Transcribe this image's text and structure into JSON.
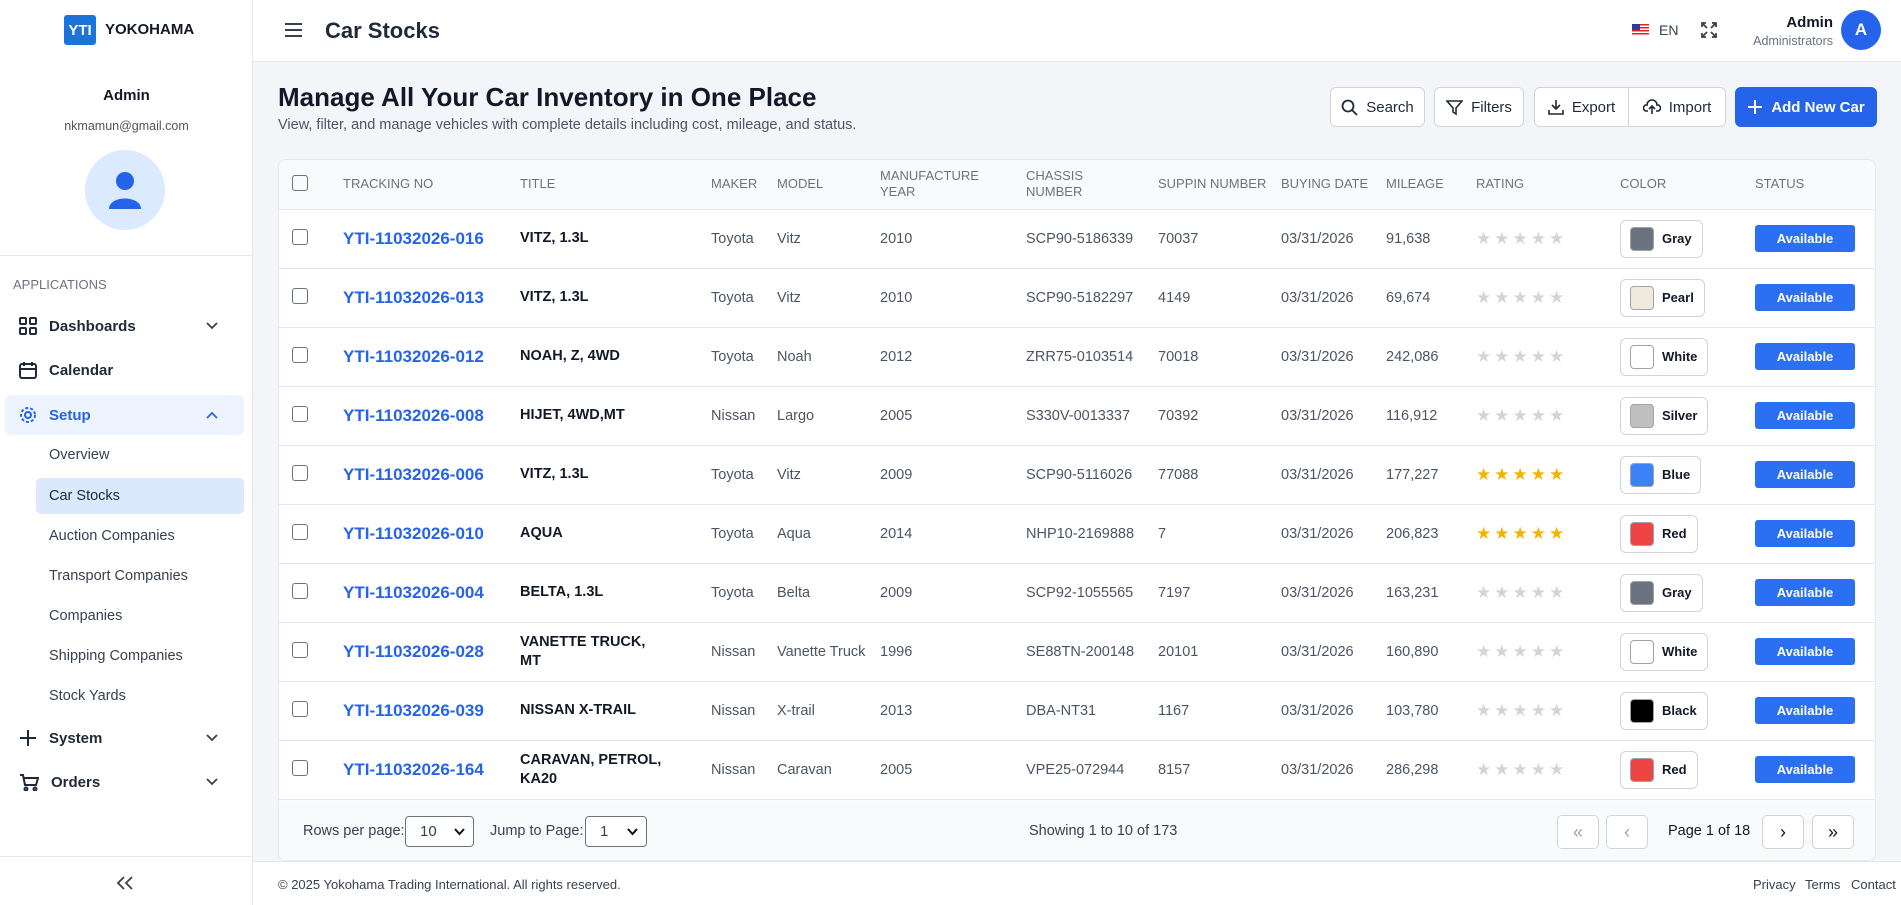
{
  "sidebar": {
    "logo": "YTI",
    "brand": "YOKOHAMA",
    "user_name": "Admin",
    "user_email": "nkmamun@gmail.com",
    "section": "APPLICATIONS",
    "menu": {
      "dashboards": "Dashboards",
      "calendar": "Calendar",
      "setup": "Setup",
      "system": "System",
      "orders": "Orders"
    },
    "setup_items": [
      "Overview",
      "Car Stocks",
      "Auction Companies",
      "Transport Companies",
      "Companies",
      "Shipping Companies",
      "Stock Yards"
    ]
  },
  "topbar": {
    "title": "Car Stocks",
    "language": "EN",
    "user_name": "Admin",
    "user_role": "Administrators",
    "avatar": "A"
  },
  "header": {
    "title": "Manage All Your Car Inventory in One Place",
    "subtitle": "View, filter, and manage vehicles with complete details including cost, mileage, and status."
  },
  "toolbar": {
    "search": "Search",
    "filters": "Filters",
    "export": "Export",
    "import": "Import",
    "add": "Add New Car"
  },
  "table": {
    "columns": [
      "TRACKING NO",
      "TITLE",
      "MAKER",
      "MODEL",
      "MANUFACTURE YEAR",
      "CHASSIS NUMBER",
      "SUPPIN NUMBER",
      "BUYING DATE",
      "MILEAGE",
      "RATING",
      "COLOR",
      "STATUS"
    ],
    "rows": [
      [
        "YTI-11032026-016",
        "VITZ, 1.3L",
        "Toyota",
        "Vitz",
        2010,
        "SCP90-5186339",
        70037,
        "03/31/2026",
        "91,638",
        0,
        "Gray",
        "#6b7280",
        "Available"
      ],
      [
        "YTI-11032026-013",
        "VITZ, 1.3L",
        "Toyota",
        "Vitz",
        2010,
        "SCP90-5182297",
        4149,
        "03/31/2026",
        "69,674",
        0,
        "Pearl",
        "#f0eadc",
        "Available"
      ],
      [
        "YTI-11032026-012",
        "NOAH, Z, 4WD",
        "Toyota",
        "Noah",
        2012,
        "ZRR75-0103514",
        70018,
        "03/31/2026",
        "242,086",
        0,
        "White",
        "#ffffff",
        "Available"
      ],
      [
        "YTI-11032026-008",
        "HIJET, 4WD,MT",
        "Nissan",
        "Largo",
        2005,
        "S330V-0013337",
        70392,
        "03/31/2026",
        "116,912",
        0,
        "Silver",
        "#c0c0c0",
        "Available"
      ],
      [
        "YTI-11032026-006",
        "VITZ, 1.3L",
        "Toyota",
        "Vitz",
        2009,
        "SCP90-5116026",
        77088,
        "03/31/2026",
        "177,227",
        5,
        "Blue",
        "#3b82f6",
        "Available"
      ],
      [
        "YTI-11032026-010",
        "AQUA",
        "Toyota",
        "Aqua",
        2014,
        "NHP10-2169888",
        7,
        "03/31/2026",
        "206,823",
        5,
        "Red",
        "#ef4444",
        "Available"
      ],
      [
        "YTI-11032026-004",
        "BELTA, 1.3L",
        "Toyota",
        "Belta",
        2009,
        "SCP92-1055565",
        7197,
        "03/31/2026",
        "163,231",
        0,
        "Gray",
        "#6b7280",
        "Available"
      ],
      [
        "YTI-11032026-028",
        "VANETTE TRUCK, MT",
        "Nissan",
        "Vanette Truck",
        1996,
        "SE88TN-200148",
        20101,
        "03/31/2026",
        "160,890",
        0,
        "White",
        "#ffffff",
        "Available"
      ],
      [
        "YTI-11032026-039",
        "NISSAN X-TRAIL",
        "Nissan",
        "X-trail",
        2013,
        "DBA-NT31",
        1167,
        "03/31/2026",
        "103,780",
        0,
        "Black",
        "#000000",
        "Available"
      ],
      [
        "YTI-11032026-164",
        "CARAVAN, PETROL, KA20",
        "Nissan",
        "Caravan",
        2005,
        "VPE25-072944",
        8157,
        "03/31/2026",
        "286,298",
        0,
        "Red",
        "#ef4444",
        "Available"
      ]
    ]
  },
  "pagination": {
    "rows_label": "Rows per page:",
    "rows_per_page": 10,
    "jump_label": "Jump to Page:",
    "page": 1,
    "showing": "Showing 1 to 10 of 173",
    "page_label": "Page 1 of 18"
  },
  "footer": {
    "copyright": "© 2025 Yokohama Trading International. All rights reserved.",
    "links": [
      "Privacy",
      "Terms",
      "Contact"
    ]
  }
}
